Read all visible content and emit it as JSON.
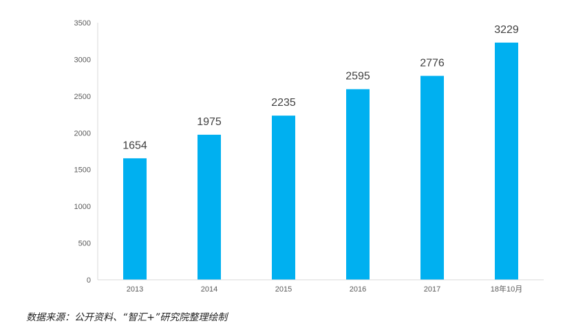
{
  "chart_data": {
    "type": "bar",
    "categories": [
      "2013",
      "2014",
      "2015",
      "2016",
      "2017",
      "18年10月"
    ],
    "values": [
      1654,
      1975,
      2235,
      2595,
      2776,
      3229
    ],
    "data_labels": [
      "1654",
      "1975",
      "2235",
      "2595",
      "2776",
      "3229"
    ],
    "y_ticks": [
      "0",
      "500",
      "1000",
      "1500",
      "2000",
      "2500",
      "3000",
      "3500"
    ],
    "ylim": [
      0,
      3500
    ],
    "grid": false,
    "legend": "none",
    "bar_color": "#00B0F0",
    "axis_color": "#D9D9D9"
  },
  "source_note": "数据来源：公开资料、“智汇+”研究院整理绘制"
}
